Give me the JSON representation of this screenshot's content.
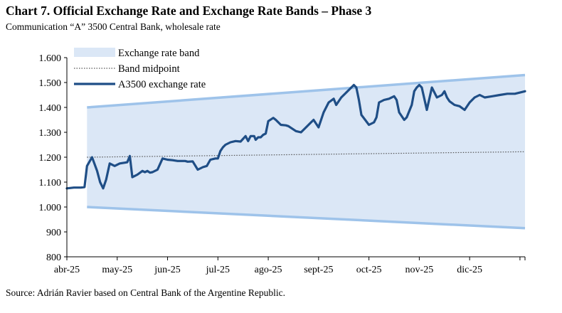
{
  "title": "Chart 7. Official Exchange Rate and Exchange Rate Bands – Phase 3",
  "subtitle": "Communication “A” 3500 Central Bank, wholesale rate",
  "source": "Source: Adrián Ravier based on Central Bank of the Argentine Republic.",
  "colors": {
    "band_fill": "#dbe7f6",
    "band_edge": "#9ec3ea",
    "midpoint": "#555555",
    "rate": "#1f4e86",
    "axis": "#000000"
  },
  "chart_data": {
    "type": "line",
    "title": "Chart 7. Official Exchange Rate and Exchange Rate Bands – Phase 3",
    "xlabel": "",
    "ylabel": "",
    "ylim": [
      800,
      1600
    ],
    "yticks": [
      800,
      900,
      1000,
      1100,
      1200,
      1300,
      1400,
      1500,
      1600
    ],
    "ytick_labels": [
      "800",
      "900",
      "1.000",
      "1.100",
      "1.200",
      "1.300",
      "1.400",
      "1.500",
      "1.600"
    ],
    "xlim": [
      0,
      9.1
    ],
    "xticks": [
      0,
      1,
      2,
      3,
      4,
      5,
      6,
      7,
      8
    ],
    "xtick_labels": [
      "abr-25",
      "may-25",
      "jun-25",
      "jul-25",
      "ago-25",
      "sept-25",
      "oct-25",
      "nov-25",
      "dic-25"
    ],
    "grid": false,
    "legend_position": "top-left",
    "series": [
      {
        "name": "Exchange rate band",
        "kind": "band",
        "x": [
          0.4,
          9.1
        ],
        "lower": [
          1000,
          915
        ],
        "upper": [
          1400,
          1530
        ]
      },
      {
        "name": "Band midpoint",
        "kind": "dotted",
        "x": [
          0.4,
          9.1
        ],
        "values": [
          1200,
          1222
        ]
      },
      {
        "name": "A3500 exchange rate",
        "kind": "line",
        "x": [
          0,
          0.14,
          0.28,
          0.35,
          0.4,
          0.5,
          0.6,
          0.66,
          0.72,
          0.78,
          0.85,
          0.95,
          1.05,
          1.15,
          1.2,
          1.25,
          1.3,
          1.35,
          1.4,
          1.5,
          1.55,
          1.6,
          1.65,
          1.7,
          1.8,
          1.9,
          2.0,
          2.1,
          2.2,
          2.25,
          2.35,
          2.4,
          2.5,
          2.6,
          2.7,
          2.78,
          2.85,
          2.95,
          3.0,
          3.05,
          3.1,
          3.15,
          3.25,
          3.35,
          3.45,
          3.55,
          3.6,
          3.65,
          3.72,
          3.75,
          3.8,
          3.85,
          3.9,
          3.95,
          4.0,
          4.1,
          4.15,
          4.25,
          4.35,
          4.4,
          4.55,
          4.65,
          4.75,
          4.85,
          4.9,
          5.0,
          5.1,
          5.2,
          5.3,
          5.35,
          5.45,
          5.55,
          5.6,
          5.7,
          5.75,
          5.8,
          5.85,
          6.0,
          6.1,
          6.15,
          6.2,
          6.3,
          6.4,
          6.5,
          6.55,
          6.6,
          6.7,
          6.75,
          6.85,
          6.9,
          6.95,
          7.0,
          7.05,
          7.15,
          7.25,
          7.35,
          7.45,
          7.5,
          7.55,
          7.6,
          7.7,
          7.8,
          7.9,
          8.0,
          8.1,
          8.2,
          8.3,
          8.45,
          8.6,
          8.75,
          8.9,
          9.1
        ],
        "values": [
          1075,
          1078,
          1078,
          1080,
          1165,
          1200,
          1145,
          1100,
          1075,
          1110,
          1175,
          1165,
          1175,
          1178,
          1180,
          1205,
          1120,
          1125,
          1130,
          1145,
          1140,
          1145,
          1138,
          1140,
          1150,
          1195,
          1190,
          1188,
          1185,
          1185,
          1185,
          1182,
          1183,
          1150,
          1160,
          1165,
          1190,
          1195,
          1195,
          1225,
          1240,
          1250,
          1260,
          1265,
          1263,
          1285,
          1265,
          1285,
          1285,
          1270,
          1280,
          1280,
          1290,
          1295,
          1345,
          1358,
          1350,
          1330,
          1328,
          1325,
          1305,
          1300,
          1320,
          1340,
          1350,
          1320,
          1380,
          1420,
          1435,
          1410,
          1440,
          1460,
          1470,
          1490,
          1480,
          1430,
          1370,
          1330,
          1340,
          1360,
          1420,
          1430,
          1435,
          1445,
          1430,
          1380,
          1350,
          1360,
          1410,
          1465,
          1480,
          1490,
          1480,
          1390,
          1480,
          1440,
          1450,
          1465,
          1440,
          1425,
          1410,
          1405,
          1390,
          1420,
          1440,
          1450,
          1440,
          1445,
          1450,
          1455,
          1455,
          1465
        ]
      }
    ]
  },
  "legend": {
    "band": "Exchange rate band",
    "midpoint": "Band midpoint",
    "rate": "A3500 exchange rate"
  }
}
